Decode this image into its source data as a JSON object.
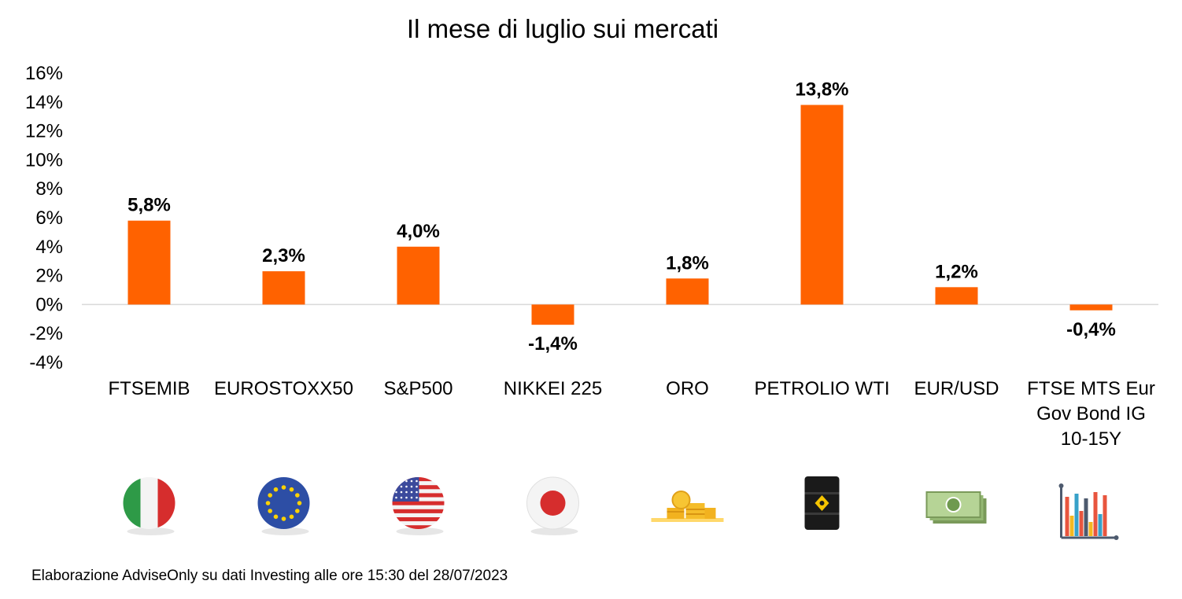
{
  "chart_data": {
    "type": "bar",
    "title": "Il mese di luglio sui mercati",
    "categories": [
      "FTSEMIB",
      "EUROSTOXX50",
      "S&P500",
      "NIKKEI 225",
      "ORO",
      "PETROLIO WTI",
      "EUR/USD",
      "FTSE MTS Eur Gov Bond IG 10-15Y"
    ],
    "category_lines": [
      [
        "FTSEMIB"
      ],
      [
        "EUROSTOXX50"
      ],
      [
        "S&P500"
      ],
      [
        "NIKKEI 225"
      ],
      [
        "ORO"
      ],
      [
        "PETROLIO WTI"
      ],
      [
        "EUR/USD"
      ],
      [
        "FTSE MTS Eur",
        "Gov Bond IG",
        "10-15Y"
      ]
    ],
    "values": [
      5.8,
      2.3,
      4.0,
      -1.4,
      1.8,
      13.8,
      1.2,
      -0.4
    ],
    "value_labels": [
      "5,8%",
      "2,3%",
      "4,0%",
      "-1,4%",
      "1,8%",
      "13,8%",
      "1,2%",
      "-0,4%"
    ],
    "y_ticks": [
      16,
      14,
      12,
      10,
      8,
      6,
      4,
      2,
      0,
      -2,
      -4
    ],
    "y_tick_labels": [
      "16%",
      "14%",
      "12%",
      "10%",
      "8%",
      "6%",
      "4%",
      "2%",
      "0%",
      "-2%",
      "-4%"
    ],
    "ylim": [
      -4,
      16
    ],
    "xlabel": "",
    "ylabel": "",
    "grid": false,
    "legend": "none",
    "bar_color": "#ff6200",
    "icons": [
      "italy-flag-icon",
      "eu-flag-icon",
      "usa-flag-icon",
      "japan-flag-icon",
      "gold-coins-icon",
      "oil-barrel-icon",
      "dollar-banknotes-icon",
      "bar-chart-icon"
    ]
  },
  "footnote": "Elaborazione AdviseOnly su dati Investing alle ore 15:30 del 28/07/2023"
}
